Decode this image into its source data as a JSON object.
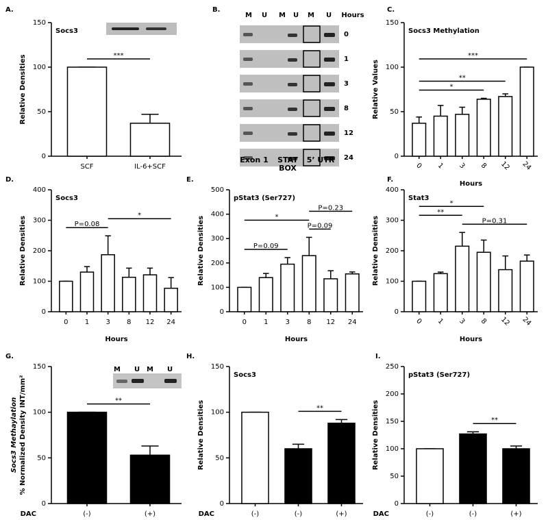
{
  "chart_data": [
    {
      "type": "bar",
      "panel_label": "A.",
      "title": "Socs3",
      "ylabel": "Relative Densities",
      "categories": [
        "SCF",
        "IL-6+SCF"
      ],
      "values": [
        100,
        37
      ],
      "errors": [
        0,
        10
      ],
      "colors": [
        "#ffffff",
        "#ffffff"
      ],
      "ylim": [
        0,
        150
      ],
      "yticks": [
        0,
        50,
        100,
        150
      ],
      "annotations": [
        {
          "text": "***",
          "span": [
            0,
            1
          ]
        }
      ]
    },
    {
      "type": "gel",
      "panel_label": "B.",
      "lane_labels": [
        "M",
        "U",
        "M",
        "U",
        "M",
        "U"
      ],
      "header": "Hours",
      "row_labels": [
        "0",
        "1",
        "3",
        "8",
        "12",
        "24"
      ],
      "group_labels": [
        "Exon 1",
        "STAT BOX",
        "5’ UTR"
      ]
    },
    {
      "type": "bar",
      "panel_label": "C.",
      "title": "Socs3 Methylation",
      "ylabel": "Relative Values",
      "xlabel": "Hours",
      "categories": [
        "0",
        "1",
        "3",
        "8",
        "12",
        "24"
      ],
      "values": [
        37,
        45,
        47,
        64,
        67,
        100
      ],
      "errors": [
        7,
        12,
        8,
        1,
        3,
        0
      ],
      "colors": [
        "#ffffff",
        "#ffffff",
        "#ffffff",
        "#ffffff",
        "#ffffff",
        "#ffffff"
      ],
      "ylim": [
        0,
        150
      ],
      "yticks": [
        0,
        50,
        100,
        150
      ],
      "annotations": [
        {
          "text": "*",
          "span": [
            0,
            3
          ]
        },
        {
          "text": "**",
          "span": [
            0,
            4
          ]
        },
        {
          "text": "***",
          "span": [
            0,
            5
          ]
        }
      ]
    },
    {
      "type": "bar",
      "panel_label": "D.",
      "title": "Socs3",
      "ylabel": "Relative Densities",
      "xlabel": "Hours",
      "categories": [
        "0",
        "1",
        "3",
        "8",
        "12",
        "24"
      ],
      "values": [
        100,
        130,
        187,
        113,
        121,
        77
      ],
      "errors": [
        0,
        18,
        62,
        30,
        22,
        35
      ],
      "colors": [
        "#ffffff",
        "#ffffff",
        "#ffffff",
        "#ffffff",
        "#ffffff",
        "#ffffff"
      ],
      "ylim": [
        0,
        400
      ],
      "yticks": [
        0,
        100,
        200,
        300,
        400
      ],
      "annotations": [
        {
          "text": "P=0.08",
          "span": [
            0,
            2
          ]
        },
        {
          "text": "*",
          "span": [
            2,
            5
          ]
        }
      ]
    },
    {
      "type": "bar",
      "panel_label": "E.",
      "title": "pStat3 (Ser727)",
      "ylabel": "Relative Densities",
      "xlabel": "Hours",
      "categories": [
        "0",
        "1",
        "3",
        "8",
        "12",
        "24"
      ],
      "values": [
        100,
        140,
        195,
        230,
        135,
        155
      ],
      "errors": [
        0,
        17,
        27,
        75,
        33,
        8
      ],
      "colors": [
        "#ffffff",
        "#ffffff",
        "#ffffff",
        "#ffffff",
        "#ffffff",
        "#ffffff"
      ],
      "ylim": [
        0,
        500
      ],
      "yticks": [
        0,
        100,
        200,
        300,
        400,
        500
      ],
      "annotations": [
        {
          "text": "P=0.09",
          "span": [
            0,
            2
          ]
        },
        {
          "text": "P=0.09",
          "span": [
            3,
            4
          ]
        },
        {
          "text": "*",
          "span": [
            0,
            3
          ]
        },
        {
          "text": "P=0.23",
          "span": [
            3,
            5
          ]
        }
      ]
    },
    {
      "type": "bar",
      "panel_label": "F.",
      "title": "Stat3",
      "ylabel": "Relative Densities",
      "xlabel": "Hours",
      "categories": [
        "0",
        "1",
        "3",
        "8",
        "12",
        "24"
      ],
      "values": [
        100,
        125,
        215,
        195,
        138,
        166
      ],
      "errors": [
        0,
        5,
        45,
        40,
        45,
        20
      ],
      "colors": [
        "#ffffff",
        "#ffffff",
        "#ffffff",
        "#ffffff",
        "#ffffff",
        "#ffffff"
      ],
      "ylim": [
        0,
        400
      ],
      "yticks": [
        0,
        100,
        200,
        300,
        400
      ],
      "annotations": [
        {
          "text": "P=0.31",
          "span": [
            2,
            5
          ]
        },
        {
          "text": "**",
          "span": [
            0,
            2
          ]
        },
        {
          "text": "*",
          "span": [
            0,
            3
          ]
        }
      ]
    },
    {
      "type": "bar",
      "panel_label": "G.",
      "ylabel": [
        "Socs3 Methaylation",
        "% Normalized Density INT/mm²"
      ],
      "xprefix": "DAC",
      "categories": [
        "(-)",
        "(+)"
      ],
      "values": [
        100,
        53
      ],
      "errors": [
        0,
        10
      ],
      "colors": [
        "#000000",
        "#000000"
      ],
      "ylim": [
        0,
        150
      ],
      "yticks": [
        0,
        50,
        100,
        150
      ],
      "inset_labels": [
        "M",
        "U",
        "M",
        "U"
      ],
      "annotations": [
        {
          "text": "**",
          "span": [
            0,
            1
          ]
        }
      ]
    },
    {
      "type": "bar",
      "panel_label": "H.",
      "title": "Socs3",
      "ylabel": "Relative Densities",
      "xprefix": "DAC",
      "categories": [
        "(-)",
        "(-)",
        "(+)"
      ],
      "values": [
        100,
        60,
        88
      ],
      "errors": [
        0,
        5,
        4
      ],
      "colors": [
        "#ffffff",
        "#000000",
        "#000000"
      ],
      "ylim": [
        0,
        150
      ],
      "yticks": [
        0,
        50,
        100,
        150
      ],
      "annotations": [
        {
          "text": "**",
          "span": [
            1,
            2
          ]
        }
      ]
    },
    {
      "type": "bar",
      "panel_label": "I.",
      "title": "pStat3 (Ser727)",
      "ylabel": "Relative Densities",
      "xprefix": "DAC",
      "categories": [
        "(-)",
        "(-)",
        "(+)"
      ],
      "values": [
        100,
        127,
        100
      ],
      "errors": [
        0,
        4,
        5
      ],
      "colors": [
        "#ffffff",
        "#000000",
        "#000000"
      ],
      "ylim": [
        0,
        250
      ],
      "yticks": [
        0,
        50,
        100,
        150,
        200,
        250
      ],
      "annotations": [
        {
          "text": "**",
          "span": [
            1,
            2
          ]
        }
      ]
    }
  ]
}
